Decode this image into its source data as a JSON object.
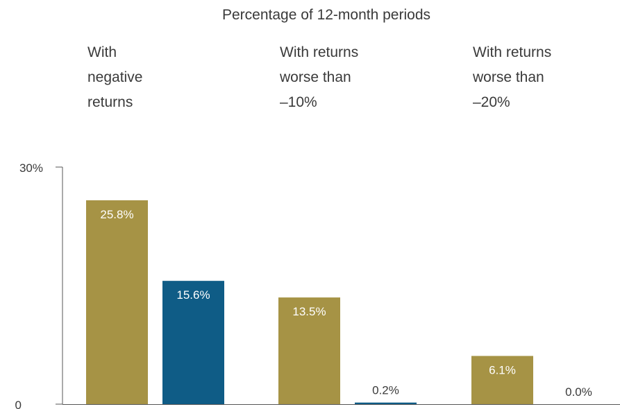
{
  "chart_data": {
    "type": "bar",
    "title": "Percentage of 12-month periods",
    "categories": [
      [
        "With",
        "negative",
        "returns"
      ],
      [
        "With returns",
        "worse than",
        "–10%"
      ],
      [
        "With returns",
        "worse than",
        "–20%"
      ]
    ],
    "series": [
      {
        "color": "#a69345",
        "values": [
          25.8,
          13.5,
          6.1
        ],
        "labels": [
          "25.8%",
          "13.5%",
          "6.1%"
        ]
      },
      {
        "color": "#0f5c86",
        "values": [
          15.6,
          0.2,
          0.0
        ],
        "labels": [
          "15.6%",
          "0.2%",
          "0.0%"
        ]
      }
    ],
    "ylim": [
      0,
      30
    ],
    "yticks": [
      {
        "value": 0,
        "label": "0"
      },
      {
        "value": 30,
        "label": "30%"
      }
    ],
    "grid": false,
    "legend": "none",
    "colors": {
      "axis": "#555555",
      "text": "#3a3a3a",
      "label_inside": "#ffffff"
    }
  }
}
